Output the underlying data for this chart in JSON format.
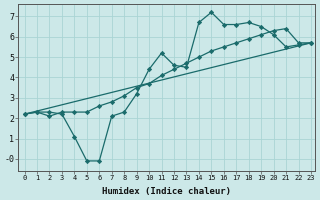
{
  "xlabel": "Humidex (Indice chaleur)",
  "bg_color": "#cce8e8",
  "line_color": "#1a6b6b",
  "grid_color": "#aad4d4",
  "xlim": [
    -0.5,
    23.3
  ],
  "ylim": [
    -0.6,
    7.6
  ],
  "xticks": [
    0,
    1,
    2,
    3,
    4,
    5,
    6,
    7,
    8,
    9,
    10,
    11,
    12,
    13,
    14,
    15,
    16,
    17,
    18,
    19,
    20,
    21,
    22,
    23
  ],
  "yticks": [
    0,
    1,
    2,
    3,
    4,
    5,
    6,
    7
  ],
  "ytick_labels": [
    "-0",
    "1",
    "2",
    "3",
    "4",
    "5",
    "6",
    "7"
  ],
  "line1_x": [
    0,
    1,
    2,
    3,
    4,
    5,
    6,
    7,
    8,
    9,
    10,
    11,
    12,
    13,
    14,
    15,
    16,
    17,
    18,
    19,
    20,
    21,
    22,
    23
  ],
  "line1_y": [
    2.2,
    2.3,
    2.3,
    2.2,
    1.1,
    -0.1,
    -0.1,
    2.1,
    2.3,
    3.2,
    4.4,
    5.2,
    4.6,
    4.5,
    6.7,
    7.2,
    6.6,
    6.6,
    6.7,
    6.5,
    6.1,
    5.5,
    5.6,
    5.7
  ],
  "line2_x": [
    0,
    1,
    2,
    3,
    4,
    5,
    6,
    7,
    8,
    9,
    10,
    11,
    12,
    13,
    14,
    15,
    16,
    17,
    18,
    19,
    20,
    21,
    22,
    23
  ],
  "line2_y": [
    2.2,
    2.3,
    2.1,
    2.3,
    2.3,
    2.3,
    2.6,
    2.8,
    3.1,
    3.5,
    3.7,
    4.1,
    4.4,
    4.7,
    5.0,
    5.3,
    5.5,
    5.7,
    5.9,
    6.1,
    6.3,
    6.4,
    5.7,
    5.7
  ],
  "line3_x": [
    0,
    23
  ],
  "line3_y": [
    2.2,
    5.7
  ]
}
